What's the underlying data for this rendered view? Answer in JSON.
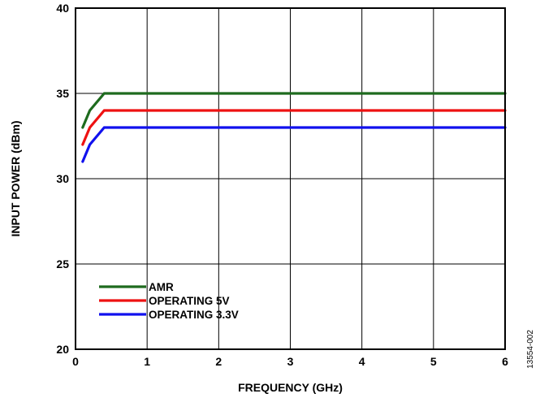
{
  "chart_data": {
    "type": "line",
    "xlabel": "FREQUENCY (GHz)",
    "ylabel": "INPUT POWER (dBm)",
    "xlim": [
      0,
      6
    ],
    "ylim": [
      20,
      40
    ],
    "xticks": [
      0,
      1,
      2,
      3,
      4,
      5,
      6
    ],
    "yticks": [
      20,
      25,
      30,
      35,
      40
    ],
    "grid": true,
    "legend_position": "bottom-left",
    "series": [
      {
        "name": "AMR",
        "color": "#1e6b1e",
        "x": [
          0.1,
          0.2,
          0.4,
          1,
          2,
          3,
          4,
          5,
          6
        ],
        "y": [
          33,
          34,
          35,
          35,
          35,
          35,
          35,
          35,
          35
        ]
      },
      {
        "name": "OPERATING 5V",
        "color": "#ee1111",
        "x": [
          0.1,
          0.2,
          0.4,
          1,
          2,
          3,
          4,
          5,
          6
        ],
        "y": [
          32,
          33,
          34,
          34,
          34,
          34,
          34,
          34,
          34
        ]
      },
      {
        "name": "OPERATING 3.3V",
        "color": "#1111ee",
        "x": [
          0.1,
          0.2,
          0.4,
          1,
          2,
          3,
          4,
          5,
          6
        ],
        "y": [
          31,
          32,
          33,
          33,
          33,
          33,
          33,
          33,
          33
        ]
      }
    ]
  },
  "figure_id": "13554-002"
}
